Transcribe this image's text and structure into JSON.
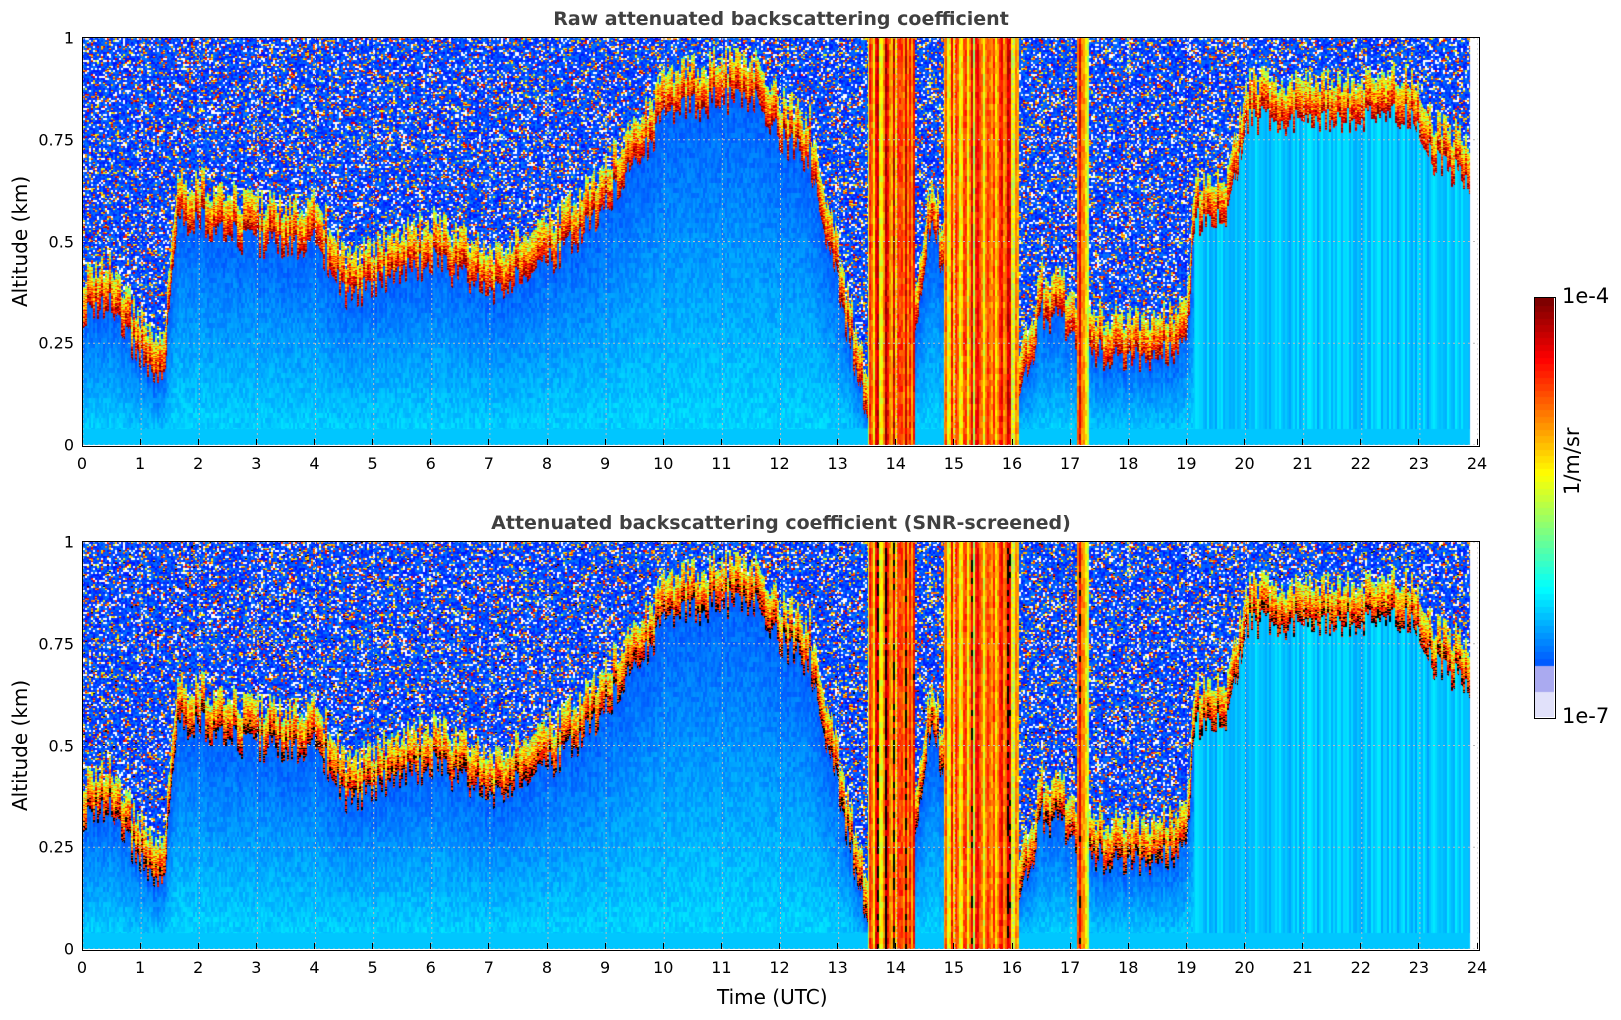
{
  "chart_data": [
    {
      "type": "heatmap",
      "title": "Raw attenuated backscattering coefficient",
      "xlabel": "",
      "ylabel": "Altitude (km)",
      "xlim": [
        0,
        24
      ],
      "ylim": [
        0,
        1
      ],
      "x_ticks": [
        "0",
        "1",
        "2",
        "3",
        "4",
        "5",
        "6",
        "7",
        "8",
        "9",
        "10",
        "11",
        "12",
        "13",
        "14",
        "15",
        "16",
        "17",
        "18",
        "19",
        "20",
        "21",
        "22",
        "23",
        "24"
      ],
      "y_ticks": [
        "0",
        "0.25",
        "0.5",
        "0.75",
        "1"
      ],
      "grid": true,
      "screened": false,
      "colormap": "jet",
      "color_scale": "log",
      "colorbar_range": [
        1e-07,
        0.0001
      ],
      "cloud_base_km": [
        [
          0.0,
          0.32
        ],
        [
          0.5,
          0.35
        ],
        [
          1.0,
          0.2
        ],
        [
          1.4,
          0.18
        ],
        [
          1.6,
          0.55
        ],
        [
          2.0,
          0.55
        ],
        [
          2.8,
          0.5
        ],
        [
          3.5,
          0.48
        ],
        [
          4.0,
          0.5
        ],
        [
          4.6,
          0.35
        ],
        [
          5.0,
          0.4
        ],
        [
          5.5,
          0.42
        ],
        [
          6.0,
          0.45
        ],
        [
          7.0,
          0.38
        ],
        [
          7.5,
          0.42
        ],
        [
          8.0,
          0.45
        ],
        [
          8.5,
          0.5
        ],
        [
          9.0,
          0.6
        ],
        [
          9.5,
          0.68
        ],
        [
          10.0,
          0.8
        ],
        [
          11.0,
          0.85
        ],
        [
          11.5,
          0.85
        ],
        [
          12.0,
          0.75
        ],
        [
          12.5,
          0.7
        ],
        [
          13.5,
          0.05
        ],
        [
          14.0,
          0.05
        ],
        [
          14.6,
          0.55
        ],
        [
          15.0,
          0.3
        ],
        [
          15.5,
          0.05
        ],
        [
          16.0,
          0.05
        ],
        [
          16.5,
          0.32
        ],
        [
          17.0,
          0.28
        ],
        [
          17.5,
          0.22
        ],
        [
          18.0,
          0.22
        ],
        [
          18.5,
          0.22
        ],
        [
          19.0,
          0.25
        ],
        [
          19.1,
          0.55
        ],
        [
          19.7,
          0.55
        ],
        [
          20.0,
          0.8
        ],
        [
          22.8,
          0.8
        ],
        [
          23.2,
          0.7
        ],
        [
          23.8,
          0.65
        ]
      ],
      "precipitation_hours": [
        [
          13.5,
          14.3
        ],
        [
          14.8,
          16.1
        ],
        [
          17.1,
          17.3
        ]
      ]
    },
    {
      "type": "heatmap",
      "title": "Attenuated backscattering coefficient (SNR-screened)",
      "xlabel": "Time (UTC)",
      "ylabel": "Altitude (km)",
      "xlim": [
        0,
        24
      ],
      "ylim": [
        0,
        1
      ],
      "x_ticks": [
        "0",
        "1",
        "2",
        "3",
        "4",
        "5",
        "6",
        "7",
        "8",
        "9",
        "10",
        "11",
        "12",
        "13",
        "14",
        "15",
        "16",
        "17",
        "18",
        "19",
        "20",
        "21",
        "22",
        "23",
        "24"
      ],
      "y_ticks": [
        "0",
        "0.25",
        "0.5",
        "0.75",
        "1"
      ],
      "grid": true,
      "screened": true,
      "colormap": "jet",
      "color_scale": "log",
      "colorbar_range": [
        1e-07,
        0.0001
      ]
    }
  ],
  "colorbar": {
    "label": "1/m/sr",
    "max_label": "1e-4",
    "min_label": "1e-7"
  }
}
